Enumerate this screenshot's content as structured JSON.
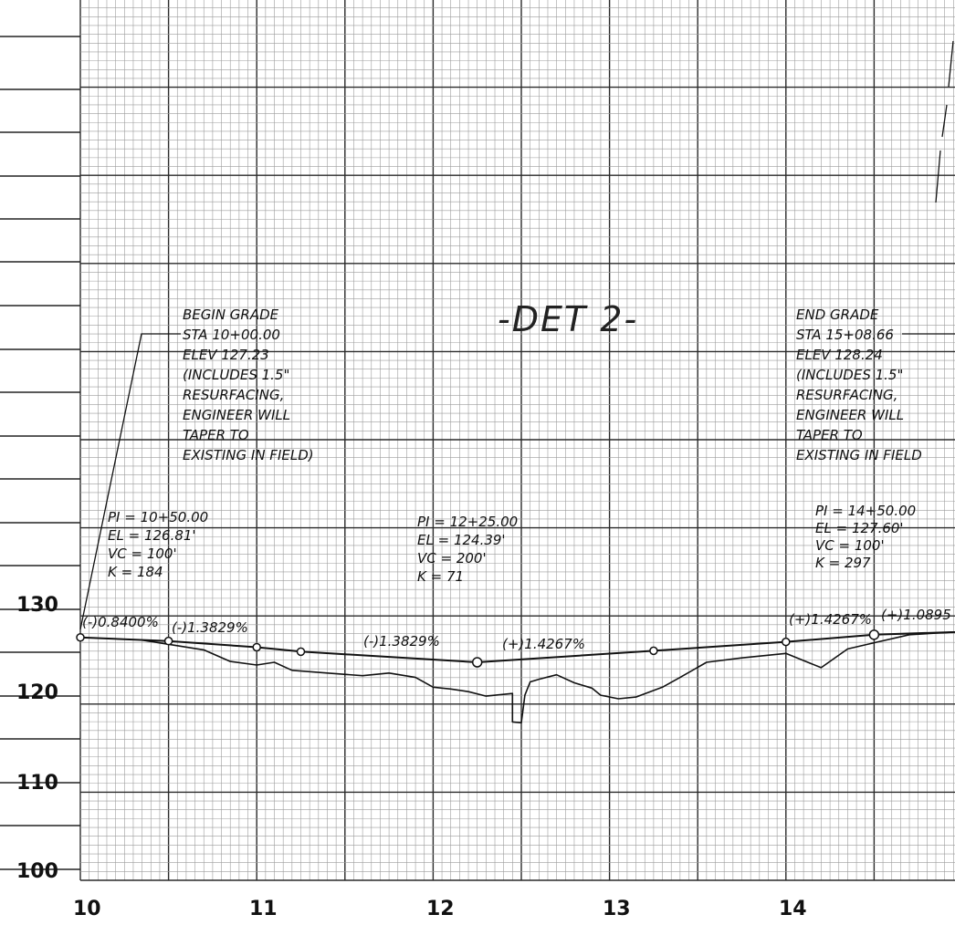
{
  "title": "-DET 2-",
  "colors": {
    "grid_fine": "#9c9c9c",
    "grid_major": "#2a2a2a",
    "ink": "#111111"
  },
  "axis": {
    "y_ticks": [
      "130",
      "120",
      "110",
      "100"
    ],
    "x_ticks": [
      "10",
      "11",
      "12",
      "13",
      "14"
    ]
  },
  "begin_grade": {
    "lines": [
      "BEGIN GRADE",
      "STA 10+00.00",
      "ELEV 127.23",
      "(INCLUDES 1.5\"",
      "RESURFACING,",
      "ENGINEER WILL",
      "TAPER TO",
      "EXISTING IN FIELD)"
    ]
  },
  "end_grade": {
    "lines": [
      "END GRADE",
      "STA 15+08.66",
      "ELEV 128.24",
      "(INCLUDES 1.5\"",
      "RESURFACING,",
      "ENGINEER WILL",
      "TAPER TO",
      "EXISTING IN FIELD"
    ]
  },
  "curves": [
    {
      "lines": [
        "PI = 10+50.00",
        "EL = 126.81'",
        "VC = 100'",
        "K = 184"
      ]
    },
    {
      "lines": [
        "PI = 12+25.00",
        "EL = 124.39'",
        "VC = 200'",
        "K = 71"
      ]
    },
    {
      "lines": [
        "PI = 14+50.00",
        "EL = 127.60'",
        "VC = 100'",
        "K = 297"
      ]
    }
  ],
  "grade_labels": [
    "(-)0.8400%",
    "(-)1.3829%",
    "(-)1.3829%",
    "(+)1.4267%",
    "(+)1.4267%",
    "(+)1.0895"
  ],
  "profile": {
    "proposed": [
      [
        10.0,
        127.0
      ],
      [
        10.5,
        126.6
      ],
      [
        11.0,
        125.9
      ],
      [
        11.25,
        125.4
      ],
      [
        12.25,
        124.2
      ],
      [
        13.25,
        125.5
      ],
      [
        14.0,
        126.5
      ],
      [
        14.5,
        127.3
      ],
      [
        15.4,
        127.9
      ]
    ],
    "control_points": [
      [
        10.0,
        127.0
      ],
      [
        10.5,
        126.6
      ],
      [
        11.0,
        125.9
      ],
      [
        11.25,
        125.4
      ],
      [
        12.25,
        124.2
      ],
      [
        13.25,
        125.5
      ],
      [
        14.0,
        126.5
      ],
      [
        14.5,
        127.3
      ]
    ],
    "existing": [
      [
        10.35,
        126.7
      ],
      [
        10.7,
        125.6
      ],
      [
        10.85,
        124.3
      ],
      [
        11.0,
        123.9
      ],
      [
        11.1,
        124.2
      ],
      [
        11.2,
        123.3
      ],
      [
        11.4,
        123.0
      ],
      [
        11.6,
        122.7
      ],
      [
        11.75,
        123.0
      ],
      [
        11.9,
        122.5
      ],
      [
        12.0,
        121.4
      ],
      [
        12.1,
        121.2
      ],
      [
        12.2,
        120.9
      ],
      [
        12.3,
        120.4
      ],
      [
        12.45,
        120.7
      ],
      [
        12.45,
        117.5
      ],
      [
        12.5,
        117.4
      ],
      [
        12.52,
        120.5
      ],
      [
        12.55,
        122.0
      ],
      [
        12.6,
        122.3
      ],
      [
        12.7,
        122.8
      ],
      [
        12.8,
        121.9
      ],
      [
        12.9,
        121.3
      ],
      [
        12.95,
        120.5
      ],
      [
        13.05,
        120.1
      ],
      [
        13.15,
        120.3
      ],
      [
        13.3,
        121.4
      ],
      [
        13.4,
        122.5
      ],
      [
        13.55,
        124.2
      ],
      [
        13.75,
        124.7
      ],
      [
        14.0,
        125.2
      ],
      [
        14.2,
        123.6
      ],
      [
        14.35,
        125.7
      ],
      [
        14.5,
        126.4
      ],
      [
        14.7,
        127.3
      ],
      [
        15.2,
        127.9
      ]
    ]
  }
}
